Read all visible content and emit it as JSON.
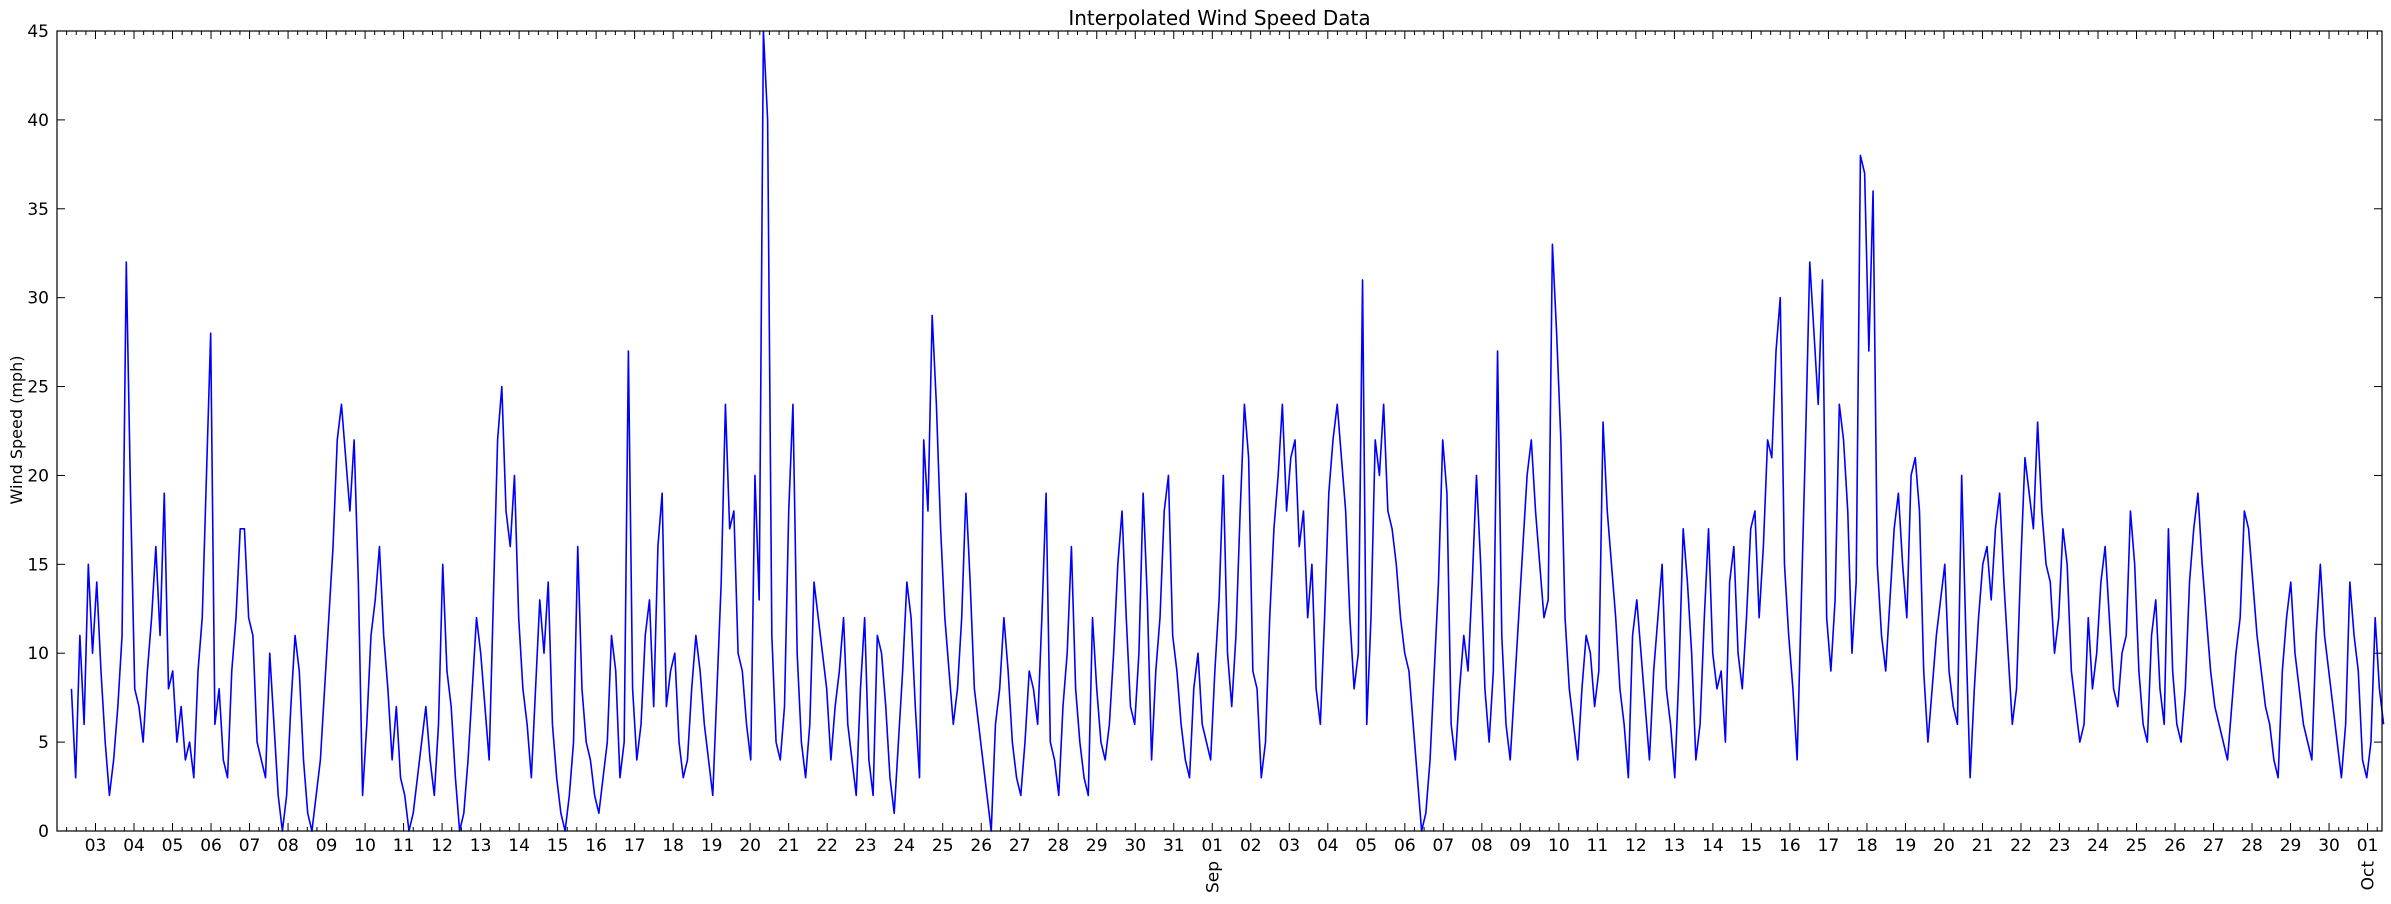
{
  "chart_data": {
    "type": "line",
    "title": "Interpolated Wind Speed Data",
    "xlabel": "",
    "ylabel": "Wind Speed (mph)",
    "ylim": [
      0,
      45
    ],
    "yticks": [
      0,
      5,
      10,
      15,
      20,
      25,
      30,
      35,
      40,
      45
    ],
    "grid": false,
    "x_start": "2025-08-02",
    "x_end": "2025-10-01",
    "x_tick_labels": [
      "03",
      "04",
      "05",
      "06",
      "07",
      "08",
      "09",
      "10",
      "11",
      "12",
      "13",
      "14",
      "15",
      "16",
      "17",
      "18",
      "19",
      "20",
      "21",
      "22",
      "23",
      "24",
      "25",
      "26",
      "27",
      "28",
      "29",
      "30",
      "31",
      "01",
      "02",
      "03",
      "04",
      "05",
      "06",
      "07",
      "08",
      "09",
      "10",
      "11",
      "12",
      "13",
      "14",
      "15",
      "16",
      "17",
      "18",
      "19",
      "20",
      "21",
      "22",
      "23",
      "24",
      "25",
      "26",
      "27",
      "28",
      "29",
      "30",
      "01"
    ],
    "month_labels": [
      {
        "label": "Sep",
        "date": "2025-09-01"
      },
      {
        "label": "Oct",
        "date": "2025-10-01"
      }
    ],
    "series": [
      {
        "color": "#0000ff",
        "x_start": "2025-08-02T09:00",
        "x_end": "2025-10-01T10:00",
        "values": [
          8,
          3,
          11,
          6,
          15,
          10,
          14,
          9,
          5,
          2,
          4,
          7,
          11,
          32,
          19,
          8,
          7,
          5,
          9,
          12,
          16,
          11,
          19,
          8,
          9,
          5,
          7,
          4,
          5,
          3,
          9,
          12,
          20,
          28,
          6,
          8,
          4,
          3,
          9,
          12,
          17,
          17,
          12,
          11,
          5,
          4,
          3,
          10,
          6,
          2,
          0,
          2,
          7,
          11,
          9,
          4,
          1,
          0,
          2,
          4,
          8,
          12,
          16,
          22,
          24,
          21,
          18,
          22,
          14,
          2,
          6,
          11,
          13,
          16,
          11,
          8,
          4,
          7,
          3,
          2,
          0,
          1,
          3,
          5,
          7,
          4,
          2,
          6,
          15,
          9,
          7,
          3,
          0,
          1,
          4,
          8,
          12,
          10,
          7,
          4,
          13,
          22,
          25,
          18,
          16,
          20,
          12,
          8,
          6,
          3,
          8,
          13,
          10,
          14,
          6,
          3,
          1,
          0,
          2,
          5,
          16,
          8,
          5,
          4,
          2,
          1,
          3,
          5,
          11,
          9,
          3,
          5,
          27,
          8,
          4,
          6,
          11,
          13,
          7,
          16,
          19,
          7,
          9,
          10,
          5,
          3,
          4,
          8,
          11,
          9,
          6,
          4,
          2,
          8,
          14,
          24,
          17,
          18,
          10,
          9,
          6,
          4,
          20,
          13,
          45,
          40,
          11,
          5,
          4,
          7,
          18,
          24,
          10,
          5,
          3,
          6,
          14,
          12,
          10,
          8,
          4,
          7,
          9,
          12,
          6,
          4,
          2,
          8,
          12,
          4,
          2,
          11,
          10,
          7,
          3,
          1,
          5,
          9,
          14,
          12,
          7,
          3,
          22,
          18,
          29,
          24,
          17,
          12,
          9,
          6,
          8,
          12,
          19,
          14,
          8,
          6,
          4,
          2,
          0,
          6,
          8,
          12,
          9,
          5,
          3,
          2,
          5,
          9,
          8,
          6,
          12,
          19,
          5,
          4,
          2,
          7,
          10,
          16,
          8,
          5,
          3,
          2,
          12,
          8,
          5,
          4,
          6,
          10,
          15,
          18,
          12,
          7,
          6,
          10,
          19,
          13,
          4,
          9,
          12,
          18,
          20,
          11,
          9,
          6,
          4,
          3,
          8,
          10,
          6,
          5,
          4,
          9,
          13,
          20,
          10,
          7,
          11,
          18,
          24,
          21,
          9,
          8,
          3,
          5,
          12,
          17,
          20,
          24,
          18,
          21,
          22,
          16,
          18,
          12,
          15,
          8,
          6,
          12,
          19,
          22,
          24,
          21,
          18,
          12,
          8,
          10,
          31,
          6,
          12,
          22,
          20,
          24,
          18,
          17,
          15,
          12,
          10,
          9,
          6,
          3,
          0,
          1,
          4,
          9,
          14,
          22,
          19,
          6,
          4,
          8,
          11,
          9,
          14,
          20,
          15,
          8,
          5,
          9,
          27,
          11,
          6,
          4,
          8,
          12,
          16,
          20,
          22,
          18,
          15,
          12,
          13,
          33,
          28,
          22,
          12,
          8,
          6,
          4,
          8,
          11,
          10,
          7,
          9,
          23,
          18,
          15,
          12,
          8,
          6,
          3,
          11,
          13,
          10,
          7,
          4,
          9,
          12,
          15,
          8,
          6,
          3,
          9,
          17,
          14,
          10,
          4,
          6,
          12,
          17,
          10,
          8,
          9,
          5,
          14,
          16,
          10,
          8,
          12,
          17,
          18,
          12,
          16,
          22,
          21,
          27,
          30,
          15,
          11,
          8,
          4,
          13,
          22,
          32,
          28,
          24,
          31,
          12,
          9,
          13,
          24,
          22,
          18,
          10,
          14,
          38,
          37,
          27,
          36,
          15,
          11,
          9,
          13,
          17,
          19,
          15,
          12,
          20,
          21,
          18,
          9,
          5,
          8,
          11,
          13,
          15,
          9,
          7,
          6,
          20,
          11,
          3,
          8,
          12,
          15,
          16,
          13,
          17,
          19,
          14,
          10,
          6,
          8,
          15,
          21,
          19,
          17,
          23,
          18,
          15,
          14,
          10,
          12,
          17,
          15,
          9,
          7,
          5,
          6,
          12,
          8,
          10,
          14,
          16,
          12,
          8,
          7,
          10,
          11,
          18,
          15,
          9,
          6,
          5,
          11,
          13,
          8,
          6,
          17,
          9,
          6,
          5,
          8,
          14,
          17,
          19,
          15,
          12,
          9,
          7,
          6,
          5,
          4,
          7,
          10,
          12,
          18,
          17,
          14,
          11,
          9,
          7,
          6,
          4,
          3,
          9,
          12,
          14,
          10,
          8,
          6,
          5,
          4,
          11,
          15,
          11,
          9,
          7,
          5,
          3,
          6,
          14,
          11,
          9,
          4,
          3,
          5,
          12,
          8,
          6
        ]
      }
    ]
  }
}
